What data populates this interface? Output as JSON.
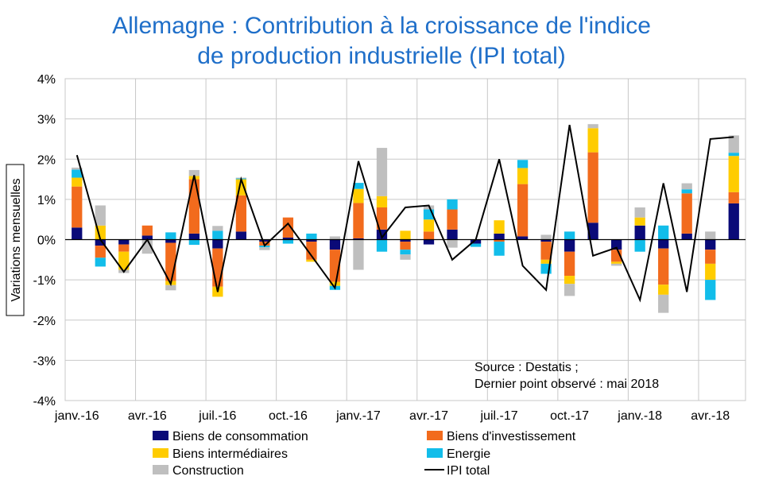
{
  "title_line1": "Allemagne : Contribution à la croissance de l'indice",
  "title_line2": "de production industrielle (IPI total)",
  "source_line1": "Source : Destatis ;",
  "source_line2": "Dernier point observé : mai 2018",
  "colors": {
    "Biens de consommation": "#0A0A78",
    "Biens d'investissement": "#F26B1D",
    "Biens intermédiaires": "#FFCC00",
    "Energie": "#12BDEA",
    "Construction": "#BFBFBF",
    "IPI total": "#000000",
    "grid": "#C8C8C8"
  },
  "chart_data": {
    "type": "bar",
    "stacked": true,
    "title": "Allemagne : Contribution à la croissance de l'indice de production industrielle (IPI total)",
    "ylabel": "Variations mensuelles",
    "xlabel": "",
    "ylim": [
      -4,
      4
    ],
    "yticks": [
      -4,
      -3,
      -2,
      -1,
      0,
      1,
      2,
      3,
      4
    ],
    "ytick_labels": [
      "-4%",
      "-3%",
      "-2%",
      "-1%",
      "0%",
      "1%",
      "2%",
      "3%",
      "4%"
    ],
    "grid": true,
    "legend_position": "bottom",
    "categories": [
      "2016-01",
      "2016-02",
      "2016-03",
      "2016-04",
      "2016-05",
      "2016-06",
      "2016-07",
      "2016-08",
      "2016-09",
      "2016-10",
      "2016-11",
      "2016-12",
      "2017-01",
      "2017-02",
      "2017-03",
      "2017-04",
      "2017-05",
      "2017-06",
      "2017-07",
      "2017-08",
      "2017-09",
      "2017-10",
      "2017-11",
      "2017-12",
      "2018-01",
      "2018-02",
      "2018-03",
      "2018-04",
      "2018-05"
    ],
    "xtick_labels": [
      {
        "index": 0,
        "label": "janv.-16"
      },
      {
        "index": 3,
        "label": "avr.-16"
      },
      {
        "index": 6,
        "label": "juil.-16"
      },
      {
        "index": 9,
        "label": "oct.-16"
      },
      {
        "index": 12,
        "label": "janv.-17"
      },
      {
        "index": 15,
        "label": "avr.-17"
      },
      {
        "index": 18,
        "label": "juil.-17"
      },
      {
        "index": 21,
        "label": "oct.-17"
      },
      {
        "index": 24,
        "label": "janv.-18"
      },
      {
        "index": 27,
        "label": "avr.-18"
      }
    ],
    "series": [
      {
        "name": "Biens de consommation",
        "values": [
          0.3,
          -0.15,
          -0.12,
          0.1,
          -0.08,
          0.15,
          -0.22,
          0.2,
          -0.05,
          0.05,
          -0.05,
          -0.25,
          0.03,
          0.25,
          -0.05,
          -0.12,
          0.25,
          -0.1,
          0.15,
          0.08,
          -0.05,
          -0.3,
          0.42,
          -0.25,
          0.35,
          -0.22,
          0.15,
          -0.25,
          0.9
        ]
      },
      {
        "name": "Biens d'investissement",
        "values": [
          1.02,
          -0.3,
          -0.18,
          0.25,
          -0.95,
          1.35,
          -0.95,
          0.9,
          -0.1,
          0.5,
          -0.45,
          -0.8,
          0.88,
          0.55,
          -0.2,
          0.2,
          0.5,
          0.0,
          -0.05,
          1.3,
          -0.45,
          -0.6,
          1.75,
          -0.3,
          0.0,
          -0.9,
          1.0,
          -0.35,
          0.28
        ]
      },
      {
        "name": "Biens intermédiaires",
        "values": [
          0.22,
          0.35,
          -0.45,
          0.0,
          -0.1,
          0.08,
          -0.25,
          0.4,
          0.0,
          0.0,
          -0.05,
          -0.1,
          0.35,
          0.28,
          0.22,
          0.3,
          0.0,
          0.0,
          0.33,
          0.4,
          -0.1,
          -0.2,
          0.6,
          -0.05,
          0.2,
          -0.25,
          0.0,
          -0.4,
          0.9
        ]
      },
      {
        "name": "Energie",
        "values": [
          0.2,
          -0.22,
          0.0,
          0.0,
          0.18,
          -0.13,
          0.22,
          0.02,
          -0.04,
          -0.1,
          0.15,
          -0.1,
          0.15,
          -0.3,
          -0.12,
          0.25,
          0.25,
          -0.08,
          -0.35,
          0.2,
          -0.25,
          0.2,
          0.0,
          0.0,
          -0.3,
          0.35,
          0.1,
          -0.5,
          0.08
        ]
      },
      {
        "name": "Construction",
        "values": [
          0.05,
          0.5,
          -0.08,
          -0.35,
          -0.13,
          0.15,
          0.12,
          0.02,
          -0.07,
          0.0,
          0.0,
          0.08,
          -0.75,
          1.2,
          -0.13,
          0.1,
          -0.2,
          0.0,
          0.0,
          0.0,
          0.12,
          -0.3,
          0.1,
          -0.05,
          0.25,
          -0.45,
          0.15,
          0.2,
          0.43
        ]
      },
      {
        "name": "IPI total",
        "kind": "line",
        "values": [
          2.1,
          0.0,
          -0.8,
          0.0,
          -1.1,
          1.6,
          -1.3,
          1.5,
          -0.15,
          0.4,
          -0.4,
          -1.2,
          1.95,
          0.05,
          0.8,
          0.85,
          -0.5,
          0.0,
          2.0,
          -0.65,
          -1.25,
          2.85,
          -0.4,
          -0.2,
          -1.5,
          1.4,
          -1.3,
          2.5,
          2.55
        ]
      }
    ]
  }
}
